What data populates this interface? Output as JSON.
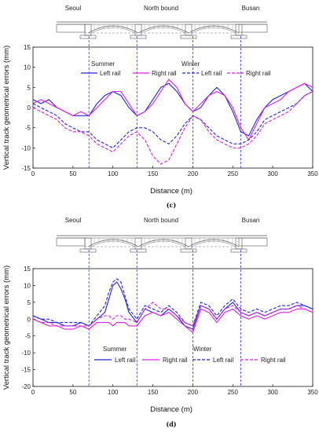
{
  "panels": [
    {
      "id": "c",
      "caption": "(c)",
      "bridge": {
        "left": "Seoul",
        "center": "North bound",
        "right": "Busan"
      },
      "ylabel": "Vertical track geometrical errors (mm)",
      "xlabel": "Distance (m)",
      "legend": {
        "summer": "Summer",
        "winter": "Winter",
        "left": "Left rail",
        "right": "Right rail"
      }
    },
    {
      "id": "d",
      "caption": "(d)",
      "bridge": {
        "left": "Seoul",
        "center": "North bound",
        "right": "Busan"
      },
      "ylabel": "Vertical track geometrical errors (mm)",
      "xlabel": "Distance (m)",
      "legend": {
        "summer": "Summer",
        "winter": "Winter",
        "left": "Left rail",
        "right": "Right rail"
      }
    }
  ],
  "colors": {
    "left_rail": "#2323d8",
    "right_rail": "#e020e0",
    "marker": "#3333dd"
  },
  "chart_data": [
    {
      "type": "line",
      "xlabel": "Distance (m)",
      "ylabel": "Vertical track geometrical errors (mm)",
      "xlim": [
        0,
        350
      ],
      "ylim": [
        -15,
        15
      ],
      "xticks": [
        0,
        50,
        100,
        150,
        200,
        250,
        300,
        350
      ],
      "yticks": [
        -15,
        -10,
        -5,
        0,
        5,
        10,
        15
      ],
      "markers_x": [
        70,
        130,
        200,
        260
      ],
      "x": [
        0,
        10,
        20,
        30,
        40,
        50,
        60,
        70,
        80,
        90,
        100,
        110,
        120,
        130,
        140,
        150,
        160,
        170,
        180,
        190,
        200,
        210,
        220,
        230,
        240,
        250,
        260,
        270,
        280,
        290,
        300,
        310,
        320,
        330,
        340,
        350
      ],
      "series": [
        {
          "name": "Summer Left rail",
          "style": "solid",
          "color": "#2323d8",
          "values": [
            2,
            1,
            2,
            0,
            -1,
            -2,
            -2,
            -2,
            1,
            3,
            4,
            3,
            0,
            -2,
            -1,
            2,
            5,
            6,
            4,
            1,
            -1,
            0,
            3,
            5,
            3,
            -1,
            -6,
            -7,
            -3,
            0,
            2,
            3,
            4,
            5,
            6,
            4
          ]
        },
        {
          "name": "Summer Right rail",
          "style": "solid",
          "color": "#e020e0",
          "values": [
            1,
            2,
            1,
            0,
            -1,
            -2,
            -1,
            -2,
            0,
            2,
            4,
            4,
            1,
            -2,
            -1,
            1,
            4,
            7,
            5,
            1,
            -1,
            1,
            3,
            4,
            3,
            0,
            -5,
            -8,
            -4,
            0,
            1,
            2,
            4,
            5,
            6,
            5
          ]
        },
        {
          "name": "Winter Left rail",
          "style": "dash",
          "color": "#2323d8",
          "values": [
            1,
            0,
            -1,
            -2,
            -4,
            -5,
            -6,
            -6,
            -8,
            -9,
            -10,
            -8,
            -6,
            -5,
            -5,
            -6,
            -8,
            -9,
            -7,
            -4,
            -2,
            -3,
            -5,
            -7,
            -8,
            -9,
            -9,
            -8,
            -6,
            -3,
            -2,
            -1,
            0,
            1,
            3,
            4
          ]
        },
        {
          "name": "Winter Right rail",
          "style": "dash",
          "color": "#e020e0",
          "values": [
            0,
            -1,
            -2,
            -3,
            -5,
            -6,
            -6,
            -7,
            -9,
            -10,
            -11,
            -9,
            -7,
            -6,
            -8,
            -12,
            -14,
            -13,
            -9,
            -5,
            -2,
            -3,
            -6,
            -8,
            -9,
            -10,
            -10,
            -9,
            -7,
            -4,
            -3,
            -2,
            -1,
            1,
            3,
            4
          ]
        }
      ]
    },
    {
      "type": "line",
      "xlabel": "Distance (m)",
      "ylabel": "Vertical track geometrical errors (mm)",
      "xlim": [
        0,
        350
      ],
      "ylim": [
        -20,
        15
      ],
      "xticks": [
        0,
        50,
        100,
        150,
        200,
        250,
        300,
        350
      ],
      "yticks": [
        -20,
        -15,
        -10,
        -5,
        0,
        5,
        10,
        15
      ],
      "markers_x": [
        70,
        130,
        200,
        260
      ],
      "x": [
        0,
        10,
        20,
        30,
        40,
        50,
        60,
        70,
        80,
        90,
        95,
        100,
        105,
        110,
        115,
        120,
        130,
        140,
        150,
        160,
        170,
        180,
        190,
        200,
        210,
        220,
        230,
        240,
        250,
        260,
        270,
        280,
        290,
        300,
        310,
        320,
        330,
        340,
        350
      ],
      "series": [
        {
          "name": "Summer Left rail",
          "style": "solid",
          "color": "#2323d8",
          "values": [
            1,
            0,
            -1,
            -1,
            -2,
            -2,
            -1,
            -2,
            0,
            2,
            6,
            10,
            11,
            9,
            6,
            2,
            -1,
            3,
            2,
            1,
            3,
            1,
            -2,
            -3,
            4,
            3,
            0,
            3,
            5,
            2,
            1,
            2,
            1,
            2,
            3,
            3,
            4,
            4,
            3
          ]
        },
        {
          "name": "Summer Right rail",
          "style": "solid",
          "color": "#e020e0",
          "values": [
            0,
            -1,
            -2,
            -2,
            -3,
            -3,
            -2,
            -3,
            -1,
            -1,
            -1,
            -2,
            -1,
            -1,
            -1,
            -2,
            -2,
            1,
            2,
            1,
            2,
            0,
            -2,
            -4,
            3,
            2,
            -1,
            2,
            3,
            1,
            0,
            1,
            0,
            1,
            2,
            2,
            3,
            3,
            2
          ]
        },
        {
          "name": "Winter Left rail",
          "style": "dash",
          "color": "#2323d8",
          "values": [
            1,
            0,
            0,
            -1,
            -1,
            -1,
            -1,
            -2,
            1,
            4,
            8,
            11,
            12,
            11,
            7,
            3,
            0,
            4,
            3,
            2,
            4,
            2,
            -1,
            -2,
            5,
            4,
            1,
            4,
            6,
            3,
            2,
            3,
            2,
            3,
            4,
            4,
            5,
            4,
            3
          ]
        },
        {
          "name": "Winter Right rail",
          "style": "dash",
          "color": "#e020e0",
          "values": [
            0,
            -1,
            -1,
            -2,
            -2,
            -2,
            -2,
            -2,
            0,
            1,
            1,
            0,
            1,
            1,
            0,
            0,
            -1,
            3,
            5,
            3,
            3,
            1,
            -1,
            -2,
            4,
            3,
            0,
            3,
            4,
            2,
            1,
            2,
            1,
            2,
            3,
            3,
            4,
            3,
            2
          ]
        }
      ]
    }
  ]
}
